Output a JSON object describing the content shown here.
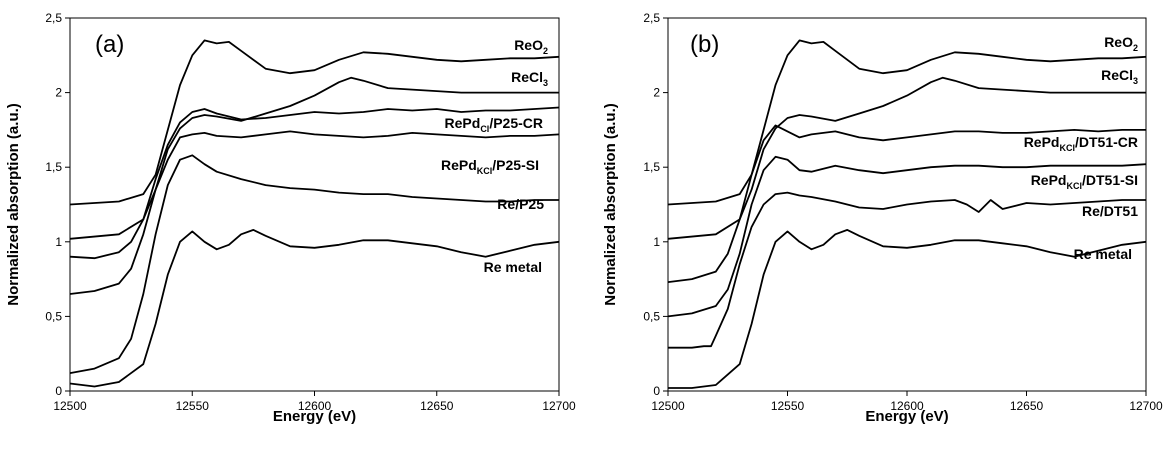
{
  "chart_data": [
    {
      "type": "line",
      "panel_label": "(a)",
      "xlabel": "Energy (eV)",
      "ylabel": "Normalized absorption (a.u.)",
      "xlim": [
        12500,
        12700
      ],
      "ylim": [
        0,
        2.5
      ],
      "x_ticks": [
        "12500",
        "12550",
        "12600",
        "12650",
        "12700"
      ],
      "y_ticks": [
        "0",
        "0,5",
        "1",
        "1,5",
        "2",
        "2,5"
      ],
      "grid": false,
      "series": [
        {
          "name": "ReO2",
          "label_main": "ReO",
          "label_sub": "2",
          "label_tail": "",
          "x": [
            12500,
            12520,
            12530,
            12535,
            12540,
            12545,
            12550,
            12555,
            12560,
            12565,
            12570,
            12580,
            12590,
            12600,
            12610,
            12620,
            12630,
            12640,
            12650,
            12660,
            12670,
            12680,
            12690,
            12700
          ],
          "y": [
            1.25,
            1.27,
            1.32,
            1.45,
            1.75,
            2.05,
            2.25,
            2.35,
            2.33,
            2.34,
            2.28,
            2.16,
            2.13,
            2.15,
            2.22,
            2.27,
            2.26,
            2.24,
            2.22,
            2.21,
            2.22,
            2.23,
            2.23,
            2.24
          ]
        },
        {
          "name": "ReCl3",
          "label_main": "ReCl",
          "label_sub": "3",
          "label_tail": "",
          "x": [
            12500,
            12520,
            12530,
            12535,
            12540,
            12545,
            12550,
            12555,
            12560,
            12570,
            12580,
            12590,
            12600,
            12610,
            12615,
            12620,
            12630,
            12640,
            12650,
            12660,
            12670,
            12680,
            12690,
            12700
          ],
          "y": [
            1.02,
            1.05,
            1.15,
            1.35,
            1.62,
            1.76,
            1.83,
            1.85,
            1.84,
            1.81,
            1.86,
            1.91,
            1.98,
            2.07,
            2.1,
            2.08,
            2.03,
            2.02,
            2.01,
            2.0,
            2.0,
            2.0,
            2.0,
            2.0
          ]
        },
        {
          "name": "RePdCl/P25-CR",
          "label_main": "RePd",
          "label_sub": "Cl",
          "label_tail": "/P25-CR",
          "x": [
            12500,
            12510,
            12520,
            12525,
            12530,
            12535,
            12540,
            12545,
            12550,
            12555,
            12560,
            12570,
            12580,
            12590,
            12600,
            12610,
            12620,
            12630,
            12640,
            12650,
            12660,
            12670,
            12680,
            12690,
            12700
          ],
          "y": [
            0.9,
            0.89,
            0.93,
            1.0,
            1.15,
            1.42,
            1.65,
            1.8,
            1.87,
            1.89,
            1.86,
            1.82,
            1.83,
            1.85,
            1.87,
            1.86,
            1.87,
            1.89,
            1.88,
            1.89,
            1.87,
            1.88,
            1.88,
            1.89,
            1.9
          ]
        },
        {
          "name": "RePdKCl/P25-SI",
          "label_main": "RePd",
          "label_sub": "KCl",
          "label_tail": "/P25-SI",
          "x": [
            12500,
            12510,
            12520,
            12525,
            12530,
            12535,
            12540,
            12545,
            12550,
            12555,
            12560,
            12570,
            12580,
            12590,
            12600,
            12610,
            12620,
            12630,
            12640,
            12650,
            12660,
            12670,
            12680,
            12690,
            12700
          ],
          "y": [
            0.65,
            0.67,
            0.72,
            0.82,
            1.05,
            1.35,
            1.55,
            1.7,
            1.72,
            1.73,
            1.71,
            1.7,
            1.72,
            1.74,
            1.72,
            1.71,
            1.7,
            1.71,
            1.73,
            1.72,
            1.71,
            1.7,
            1.71,
            1.71,
            1.72
          ]
        },
        {
          "name": "Re/P25",
          "label_main": "Re/P25",
          "label_sub": "",
          "label_tail": "",
          "x": [
            12500,
            12510,
            12520,
            12525,
            12530,
            12535,
            12540,
            12545,
            12550,
            12555,
            12560,
            12570,
            12580,
            12590,
            12600,
            12610,
            12620,
            12630,
            12640,
            12650,
            12660,
            12670,
            12680,
            12690,
            12700
          ],
          "y": [
            0.12,
            0.15,
            0.22,
            0.35,
            0.65,
            1.05,
            1.38,
            1.55,
            1.58,
            1.52,
            1.47,
            1.42,
            1.38,
            1.36,
            1.35,
            1.33,
            1.32,
            1.32,
            1.3,
            1.29,
            1.28,
            1.27,
            1.27,
            1.28,
            1.28
          ]
        },
        {
          "name": "Re metal",
          "label_main": "Re metal",
          "label_sub": "",
          "label_tail": "",
          "x": [
            12500,
            12510,
            12520,
            12530,
            12535,
            12540,
            12545,
            12550,
            12555,
            12560,
            12565,
            12570,
            12575,
            12580,
            12590,
            12600,
            12610,
            12620,
            12630,
            12640,
            12650,
            12660,
            12670,
            12680,
            12690,
            12700
          ],
          "y": [
            0.05,
            0.03,
            0.06,
            0.18,
            0.45,
            0.78,
            1.0,
            1.07,
            1.0,
            0.95,
            0.98,
            1.05,
            1.08,
            1.04,
            0.97,
            0.96,
            0.98,
            1.01,
            1.01,
            0.99,
            0.97,
            0.93,
            0.9,
            0.94,
            0.98,
            1.0
          ]
        }
      ]
    },
    {
      "type": "line",
      "panel_label": "(b)",
      "xlabel": "Energy (eV)",
      "ylabel": "Normalized absorption (a.u.)",
      "xlim": [
        12500,
        12700
      ],
      "ylim": [
        0,
        2.5
      ],
      "x_ticks": [
        "12500",
        "12550",
        "12600",
        "12650",
        "12700"
      ],
      "y_ticks": [
        "0",
        "0,5",
        "1",
        "1,5",
        "2",
        "2,5"
      ],
      "grid": false,
      "series": [
        {
          "name": "ReO2",
          "label_main": "ReO",
          "label_sub": "2",
          "label_tail": "",
          "x": [
            12500,
            12520,
            12530,
            12535,
            12540,
            12545,
            12550,
            12555,
            12560,
            12565,
            12570,
            12580,
            12590,
            12600,
            12610,
            12620,
            12630,
            12640,
            12650,
            12660,
            12670,
            12680,
            12690,
            12700
          ],
          "y": [
            1.25,
            1.27,
            1.32,
            1.45,
            1.75,
            2.05,
            2.25,
            2.35,
            2.33,
            2.34,
            2.28,
            2.16,
            2.13,
            2.15,
            2.22,
            2.27,
            2.26,
            2.24,
            2.22,
            2.21,
            2.22,
            2.23,
            2.23,
            2.24
          ]
        },
        {
          "name": "ReCl3",
          "label_main": "ReCl",
          "label_sub": "3",
          "label_tail": "",
          "x": [
            12500,
            12520,
            12530,
            12535,
            12540,
            12545,
            12550,
            12555,
            12560,
            12570,
            12580,
            12590,
            12600,
            12610,
            12615,
            12620,
            12630,
            12640,
            12650,
            12660,
            12670,
            12680,
            12690,
            12700
          ],
          "y": [
            1.02,
            1.05,
            1.15,
            1.35,
            1.62,
            1.76,
            1.83,
            1.85,
            1.84,
            1.81,
            1.86,
            1.91,
            1.98,
            2.07,
            2.1,
            2.08,
            2.03,
            2.02,
            2.01,
            2.0,
            2.0,
            2.0,
            2.0,
            2.0
          ]
        },
        {
          "name": "RePdKCl/DT51-CR",
          "label_main": "RePd",
          "label_sub": "KCl",
          "label_tail": "/DT51-CR",
          "x": [
            12500,
            12510,
            12520,
            12525,
            12530,
            12535,
            12540,
            12545,
            12550,
            12555,
            12560,
            12570,
            12580,
            12590,
            12600,
            12610,
            12620,
            12630,
            12640,
            12650,
            12660,
            12670,
            12680,
            12690,
            12700
          ],
          "y": [
            0.73,
            0.75,
            0.8,
            0.92,
            1.15,
            1.45,
            1.68,
            1.78,
            1.74,
            1.7,
            1.72,
            1.74,
            1.7,
            1.68,
            1.7,
            1.72,
            1.74,
            1.74,
            1.73,
            1.73,
            1.74,
            1.75,
            1.74,
            1.75,
            1.75
          ]
        },
        {
          "name": "RePdKCl/DT51-SI",
          "label_main": "RePd",
          "label_sub": "KCl",
          "label_tail": "/DT51-SI",
          "x": [
            12500,
            12510,
            12520,
            12525,
            12530,
            12535,
            12540,
            12545,
            12550,
            12555,
            12560,
            12570,
            12580,
            12590,
            12600,
            12610,
            12620,
            12630,
            12640,
            12650,
            12660,
            12670,
            12680,
            12690,
            12700
          ],
          "y": [
            0.5,
            0.52,
            0.57,
            0.68,
            0.92,
            1.25,
            1.48,
            1.57,
            1.55,
            1.48,
            1.47,
            1.51,
            1.48,
            1.46,
            1.48,
            1.5,
            1.51,
            1.51,
            1.5,
            1.5,
            1.51,
            1.51,
            1.51,
            1.51,
            1.52
          ]
        },
        {
          "name": "Re/DT51",
          "label_main": "Re/DT51",
          "label_sub": "",
          "label_tail": "",
          "x": [
            12500,
            12510,
            12515,
            12518,
            12520,
            12525,
            12530,
            12535,
            12540,
            12545,
            12550,
            12555,
            12560,
            12570,
            12580,
            12590,
            12600,
            12610,
            12620,
            12625,
            12630,
            12635,
            12640,
            12650,
            12660,
            12670,
            12680,
            12690,
            12700
          ],
          "y": [
            0.29,
            0.29,
            0.3,
            0.3,
            0.37,
            0.55,
            0.85,
            1.1,
            1.25,
            1.32,
            1.33,
            1.31,
            1.3,
            1.27,
            1.23,
            1.22,
            1.25,
            1.27,
            1.28,
            1.25,
            1.2,
            1.28,
            1.22,
            1.26,
            1.25,
            1.26,
            1.27,
            1.28,
            1.28
          ]
        },
        {
          "name": "Re metal",
          "label_main": "Re metal",
          "label_sub": "",
          "label_tail": "",
          "x": [
            12500,
            12510,
            12520,
            12530,
            12535,
            12540,
            12545,
            12550,
            12555,
            12560,
            12565,
            12570,
            12575,
            12580,
            12590,
            12600,
            12610,
            12620,
            12630,
            12640,
            12650,
            12660,
            12670,
            12680,
            12690,
            12700
          ],
          "y": [
            0.02,
            0.02,
            0.04,
            0.18,
            0.45,
            0.78,
            1.0,
            1.07,
            1.0,
            0.95,
            0.98,
            1.05,
            1.08,
            1.04,
            0.97,
            0.96,
            0.98,
            1.01,
            1.01,
            0.99,
            0.97,
            0.93,
            0.9,
            0.94,
            0.98,
            1.0
          ]
        }
      ]
    }
  ]
}
